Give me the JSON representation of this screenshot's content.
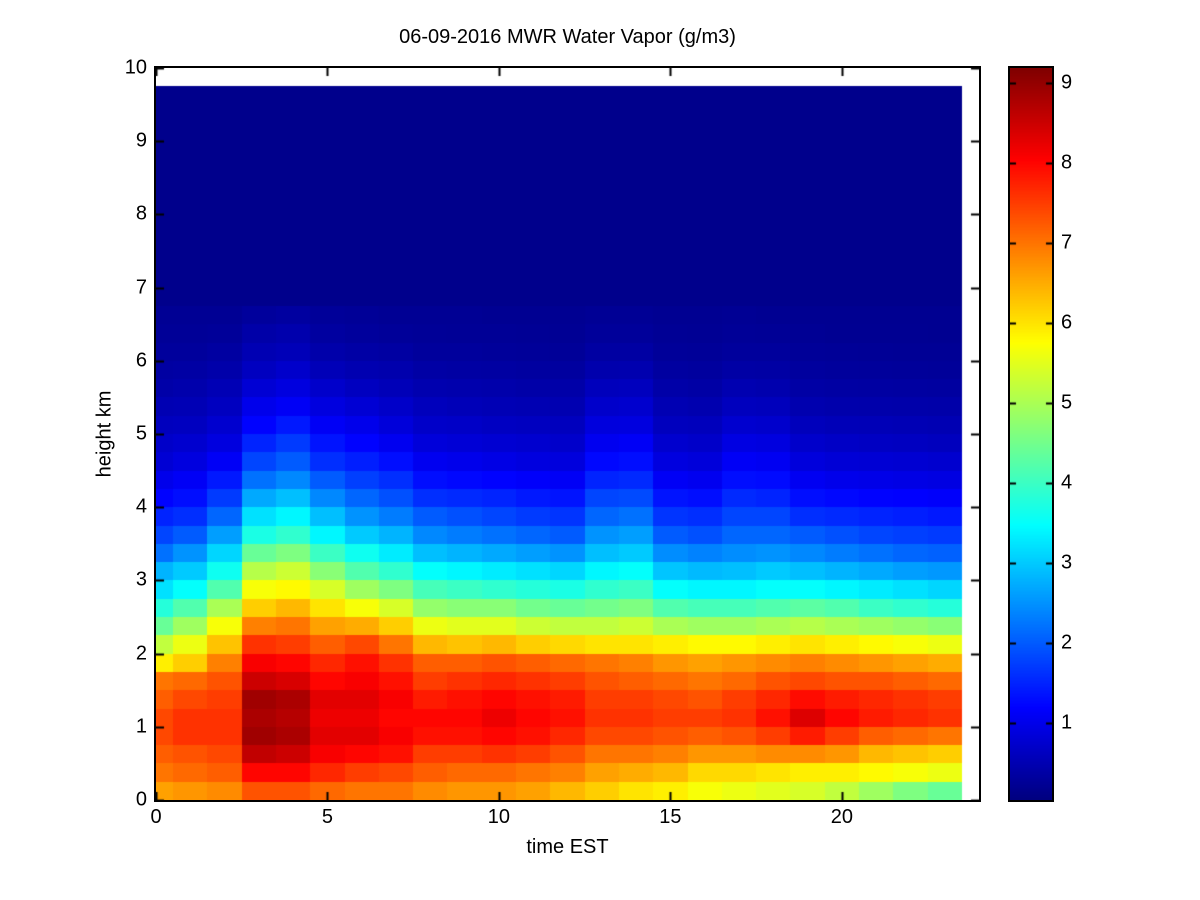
{
  "figure": {
    "title": "06-09-2016 MWR Water Vapor (g/m3)",
    "xlabel": "time EST",
    "ylabel": "height km",
    "background_color": "#ffffff",
    "axis_color": "#000000"
  },
  "chart_data": {
    "type": "heatmap",
    "title": "06-09-2016 MWR Water Vapor (g/m3)",
    "xlabel": "time EST",
    "ylabel": "height km",
    "colormap": "jet",
    "color_range": [
      0.04,
      9.19
    ],
    "xlim": [
      0,
      24
    ],
    "ylim": [
      0,
      10
    ],
    "x_ticks": [
      0,
      5,
      10,
      15,
      20
    ],
    "y_ticks": [
      0,
      1,
      2,
      3,
      4,
      5,
      6,
      7,
      8,
      9,
      10
    ],
    "colorbar_ticks": [
      1,
      2,
      3,
      4,
      5,
      6,
      7,
      8,
      9
    ],
    "x_data_end_hour": 23.5,
    "y_data_top_km": 9.75,
    "hours": [
      0,
      1,
      2,
      3,
      4,
      5,
      6,
      7,
      8,
      9,
      10,
      11,
      12,
      13,
      14,
      15,
      16,
      17,
      18,
      19,
      20,
      21,
      22,
      23
    ],
    "heights_km": [
      0,
      0.25,
      0.5,
      0.75,
      1,
      1.25,
      1.5,
      1.75,
      2,
      2.25,
      2.5,
      2.75,
      3,
      3.25,
      3.5,
      3.75,
      4,
      4.25,
      4.5,
      4.75,
      5,
      5.25,
      5.5,
      5.75,
      6,
      6.25,
      6.5
    ],
    "upper_fill": {
      "above_km": 6.75,
      "to_km": 9.75,
      "value": 0.15
    },
    "values_g_m3_by_hour": [
      [
        6.6,
        7.0,
        7.2,
        7.4,
        7.4,
        7.2,
        7.0,
        5.9,
        5.2,
        4.4,
        3.8,
        3.2,
        2.8,
        2.2,
        1.8,
        1.5,
        1.2,
        1.0,
        0.8,
        0.7,
        0.6,
        0.5,
        0.4,
        0.35,
        0.3,
        0.25,
        0.22
      ],
      [
        6.7,
        7.1,
        7.3,
        7.6,
        7.6,
        7.4,
        7.1,
        6.2,
        5.6,
        4.9,
        4.2,
        3.5,
        3.0,
        2.5,
        2.0,
        1.6,
        1.3,
        1.1,
        0.9,
        0.75,
        0.62,
        0.52,
        0.44,
        0.37,
        0.3,
        0.25,
        0.22
      ],
      [
        6.8,
        7.2,
        7.4,
        7.6,
        7.6,
        7.5,
        7.3,
        6.9,
        6.3,
        5.7,
        5.0,
        4.2,
        3.6,
        3.1,
        2.6,
        2.1,
        1.7,
        1.4,
        1.1,
        0.9,
        0.75,
        0.62,
        0.52,
        0.42,
        0.34,
        0.27,
        0.22
      ],
      [
        7.3,
        8.0,
        8.6,
        8.9,
        8.8,
        8.9,
        8.5,
        8.1,
        7.6,
        6.9,
        6.2,
        5.7,
        5.1,
        4.4,
        3.7,
        3.2,
        2.7,
        2.2,
        1.8,
        1.5,
        1.2,
        1.0,
        0.8,
        0.62,
        0.5,
        0.4,
        0.3
      ],
      [
        7.3,
        8.0,
        8.5,
        8.8,
        8.7,
        8.8,
        8.4,
        8.0,
        7.5,
        7.0,
        6.4,
        5.8,
        5.3,
        4.6,
        3.9,
        3.4,
        2.9,
        2.4,
        2.0,
        1.7,
        1.4,
        1.1,
        0.9,
        0.72,
        0.55,
        0.45,
        0.33
      ],
      [
        7.1,
        7.7,
        8.1,
        8.3,
        8.2,
        8.3,
        8.0,
        7.7,
        7.2,
        6.6,
        6.0,
        5.4,
        4.7,
        4.0,
        3.4,
        2.9,
        2.4,
        2.0,
        1.6,
        1.35,
        1.1,
        0.9,
        0.72,
        0.55,
        0.42,
        0.33,
        0.27
      ],
      [
        7.0,
        7.5,
        8.0,
        8.3,
        8.2,
        8.3,
        8.1,
        7.9,
        7.4,
        6.5,
        5.7,
        4.9,
        4.2,
        3.6,
        3.0,
        2.5,
        2.1,
        1.75,
        1.45,
        1.2,
        1.0,
        0.8,
        0.62,
        0.48,
        0.38,
        0.3,
        0.25
      ],
      [
        7.0,
        7.4,
        7.9,
        8.1,
        8.0,
        8.1,
        7.9,
        7.6,
        7.0,
        6.2,
        5.4,
        4.6,
        3.9,
        3.3,
        2.8,
        2.3,
        1.9,
        1.6,
        1.3,
        1.05,
        0.85,
        0.7,
        0.55,
        0.45,
        0.35,
        0.27,
        0.22
      ],
      [
        6.8,
        7.2,
        7.5,
        7.9,
        8.0,
        7.8,
        7.5,
        7.2,
        6.4,
        5.6,
        4.8,
        4.1,
        3.5,
        2.9,
        2.4,
        2.0,
        1.6,
        1.3,
        1.05,
        0.85,
        0.7,
        0.58,
        0.47,
        0.38,
        0.3,
        0.25,
        0.22
      ],
      [
        6.7,
        7.1,
        7.5,
        7.9,
        8.0,
        7.9,
        7.6,
        7.2,
        6.3,
        5.5,
        4.7,
        4.0,
        3.4,
        2.8,
        2.3,
        1.9,
        1.55,
        1.25,
        1.0,
        0.82,
        0.68,
        0.55,
        0.45,
        0.36,
        0.3,
        0.24,
        0.22
      ],
      [
        6.7,
        7.1,
        7.6,
        8.0,
        8.2,
        8.0,
        7.7,
        7.3,
        6.4,
        5.5,
        4.7,
        3.9,
        3.3,
        2.7,
        2.2,
        1.8,
        1.5,
        1.2,
        0.95,
        0.78,
        0.64,
        0.52,
        0.43,
        0.35,
        0.28,
        0.24,
        0.21
      ],
      [
        6.6,
        7.0,
        7.5,
        7.9,
        8.0,
        7.9,
        7.6,
        7.2,
        6.2,
        5.3,
        4.5,
        3.8,
        3.2,
        2.6,
        2.1,
        1.7,
        1.4,
        1.15,
        0.9,
        0.75,
        0.62,
        0.5,
        0.4,
        0.33,
        0.27,
        0.23,
        0.21
      ],
      [
        6.4,
        6.9,
        7.3,
        7.7,
        7.9,
        7.8,
        7.5,
        7.1,
        6.1,
        5.2,
        4.4,
        3.7,
        3.1,
        2.5,
        2.0,
        1.65,
        1.35,
        1.1,
        0.88,
        0.72,
        0.6,
        0.48,
        0.4,
        0.32,
        0.26,
        0.22,
        0.21
      ],
      [
        6.2,
        6.6,
        7.0,
        7.4,
        7.6,
        7.5,
        7.3,
        7.0,
        6.0,
        5.2,
        4.5,
        3.9,
        3.4,
        2.9,
        2.5,
        2.1,
        1.8,
        1.5,
        1.25,
        1.05,
        0.88,
        0.72,
        0.58,
        0.45,
        0.35,
        0.28,
        0.23
      ],
      [
        6.0,
        6.5,
        7.0,
        7.4,
        7.6,
        7.5,
        7.2,
        6.9,
        6.0,
        5.3,
        4.6,
        4.0,
        3.5,
        3.0,
        2.6,
        2.2,
        1.85,
        1.55,
        1.3,
        1.1,
        0.9,
        0.74,
        0.6,
        0.47,
        0.36,
        0.28,
        0.23
      ],
      [
        5.9,
        6.4,
        6.9,
        7.3,
        7.5,
        7.4,
        7.1,
        6.7,
        5.9,
        5.0,
        4.2,
        3.5,
        2.95,
        2.45,
        2.0,
        1.65,
        1.35,
        1.1,
        0.9,
        0.74,
        0.6,
        0.5,
        0.4,
        0.33,
        0.27,
        0.23,
        0.21
      ],
      [
        5.7,
        6.1,
        6.7,
        7.2,
        7.5,
        7.3,
        7.0,
        6.6,
        5.8,
        4.9,
        4.1,
        3.4,
        2.85,
        2.35,
        1.9,
        1.6,
        1.3,
        1.05,
        0.85,
        0.7,
        0.58,
        0.47,
        0.38,
        0.31,
        0.26,
        0.22,
        0.21
      ],
      [
        5.6,
        6.1,
        6.7,
        7.3,
        7.6,
        7.5,
        7.1,
        6.7,
        5.8,
        4.9,
        4.1,
        3.4,
        2.9,
        2.45,
        2.1,
        1.8,
        1.55,
        1.3,
        1.1,
        0.92,
        0.75,
        0.6,
        0.48,
        0.38,
        0.3,
        0.25,
        0.22
      ],
      [
        5.5,
        6.0,
        6.8,
        7.5,
        7.9,
        7.7,
        7.3,
        6.8,
        5.9,
        5.0,
        4.2,
        3.5,
        3.0,
        2.5,
        2.1,
        1.8,
        1.5,
        1.27,
        1.07,
        0.9,
        0.73,
        0.58,
        0.46,
        0.37,
        0.3,
        0.24,
        0.21
      ],
      [
        5.4,
        5.9,
        6.8,
        7.8,
        8.35,
        7.95,
        7.4,
        6.9,
        6.0,
        5.1,
        4.3,
        3.5,
        2.9,
        2.4,
        2.0,
        1.6,
        1.3,
        1.07,
        0.87,
        0.72,
        0.58,
        0.47,
        0.38,
        0.31,
        0.26,
        0.22,
        0.2
      ],
      [
        5.2,
        5.9,
        6.7,
        7.5,
        8.0,
        7.8,
        7.3,
        6.8,
        5.9,
        5.0,
        4.2,
        3.4,
        2.8,
        2.3,
        1.9,
        1.55,
        1.25,
        1.0,
        0.82,
        0.67,
        0.55,
        0.44,
        0.36,
        0.3,
        0.25,
        0.21,
        0.2
      ],
      [
        4.9,
        5.8,
        6.4,
        7.2,
        7.8,
        7.7,
        7.3,
        6.7,
        5.8,
        4.9,
        4.0,
        3.3,
        2.7,
        2.2,
        1.8,
        1.5,
        1.2,
        0.98,
        0.8,
        0.65,
        0.54,
        0.43,
        0.35,
        0.29,
        0.24,
        0.21,
        0.2
      ],
      [
        4.6,
        5.7,
        6.3,
        7.1,
        7.7,
        7.6,
        7.2,
        6.6,
        5.7,
        4.8,
        3.9,
        3.2,
        2.6,
        2.1,
        1.75,
        1.45,
        1.18,
        0.95,
        0.78,
        0.63,
        0.52,
        0.42,
        0.34,
        0.28,
        0.23,
        0.21,
        0.2
      ],
      [
        4.4,
        5.6,
        6.2,
        7.0,
        7.6,
        7.5,
        7.1,
        6.5,
        5.6,
        4.7,
        3.8,
        3.1,
        2.55,
        2.05,
        1.7,
        1.4,
        1.15,
        0.92,
        0.75,
        0.6,
        0.5,
        0.41,
        0.33,
        0.27,
        0.23,
        0.2,
        0.2
      ]
    ]
  }
}
